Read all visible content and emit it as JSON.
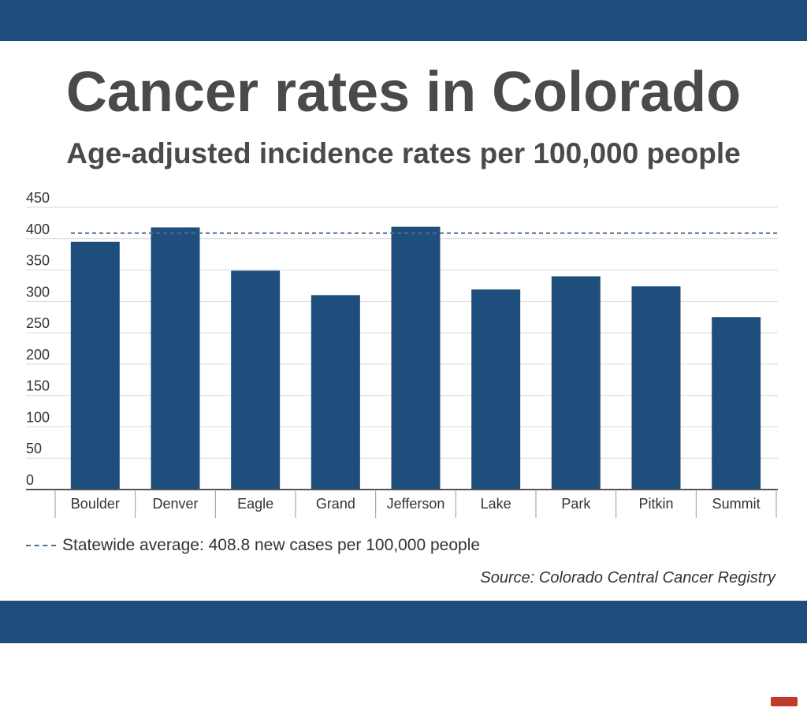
{
  "colors": {
    "band": "#1f4e7d",
    "bar": "#1f4e7d",
    "average_line": "#4a6e94",
    "title": "#4a4a4a",
    "grid": "#d9d9d9",
    "axis": "#555555",
    "tick_text": "#333333",
    "brand_mark": "#c0392b"
  },
  "header": {
    "title": "Cancer rates in Colorado",
    "subtitle": "Age-adjusted incidence rates per 100,000 people"
  },
  "legend": {
    "icon": "dashed-line-icon",
    "label": "Statewide average: 408.8 new cases per 100,000 people"
  },
  "source": "Source: Colorado Central Cancer Registry",
  "chart_data": {
    "type": "bar",
    "title": "Cancer rates in Colorado",
    "subtitle": "Age-adjusted incidence rates per 100,000 people",
    "xlabel": "",
    "ylabel": "",
    "ylim": [
      0,
      450
    ],
    "yticks": [
      0,
      50,
      100,
      150,
      200,
      250,
      300,
      350,
      400,
      450
    ],
    "grid": true,
    "categories": [
      "Boulder",
      "Denver",
      "Eagle",
      "Grand",
      "Jefferson",
      "Lake",
      "Park",
      "Pitkin",
      "Summit"
    ],
    "values": [
      395,
      418,
      349,
      310,
      419,
      319,
      340,
      324,
      275
    ],
    "reference_line": {
      "value": 408.8,
      "label": "Statewide average: 408.8 new cases per 100,000 people",
      "style": "dashed"
    },
    "legend_position": "bottom-left"
  }
}
